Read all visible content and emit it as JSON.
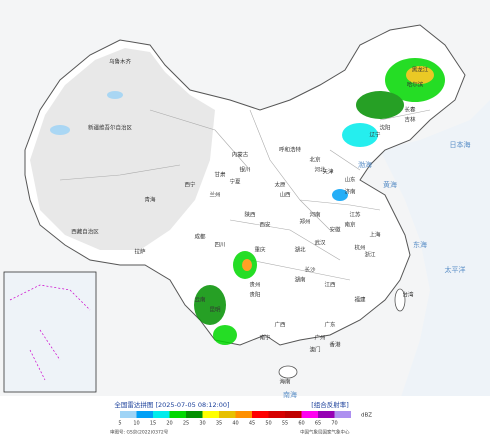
{
  "header": {
    "title": "全国雷达拼图 [2025-07-05 08:12:00]",
    "product": "[组合反射率]"
  },
  "legend": {
    "values": [
      5,
      10,
      15,
      20,
      25,
      30,
      35,
      40,
      45,
      50,
      55,
      60,
      65,
      70
    ],
    "colors": [
      "#9fd4f6",
      "#00a0f6",
      "#00ecec",
      "#00d800",
      "#019000",
      "#ffff00",
      "#e7c000",
      "#ff9000",
      "#ff0000",
      "#d60000",
      "#c00000",
      "#ff00f0",
      "#9600b4",
      "#ad90f0"
    ],
    "unit": "dBZ"
  },
  "footer": {
    "approval": "审图号: GS京(2022)0372号",
    "source": "中国气象局国家气象中心"
  },
  "map": {
    "labels": [
      "乌鲁木齐",
      "新疆维吾尔自治区",
      "西藏自治区",
      "拉萨",
      "青海",
      "西宁",
      "甘肃",
      "兰州",
      "内蒙古",
      "呼和浩特",
      "宁夏",
      "银川",
      "四川",
      "成都",
      "重庆",
      "云南",
      "昆明",
      "贵州",
      "贵阳",
      "广西",
      "南宁",
      "广东",
      "广州",
      "湖南",
      "长沙",
      "湖北",
      "武汉",
      "河南",
      "郑州",
      "山东",
      "济南",
      "河北",
      "北京",
      "天津",
      "山西",
      "太原",
      "陕西",
      "西安",
      "辽宁",
      "沈阳",
      "吉林",
      "长春",
      "黑龙江",
      "哈尔滨",
      "江苏",
      "南京",
      "上海",
      "浙江",
      "杭州",
      "安徽",
      "江西",
      "福建",
      "台湾",
      "海南",
      "香港",
      "澳门",
      "渤海",
      "黄海",
      "东海",
      "日本海",
      "太平洋",
      "南海"
    ]
  }
}
